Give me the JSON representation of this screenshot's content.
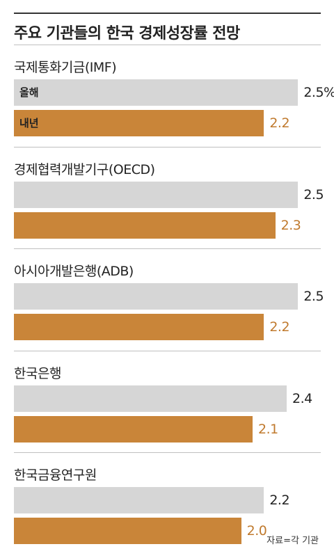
{
  "title": "주요 기관들의 한국 경제성장률 전망",
  "source": "자료=각 기관",
  "colors": {
    "this_year": "#d6d6d6",
    "next_year": "#c98539",
    "next_text": "#c07a2e"
  },
  "chart_data": {
    "type": "bar",
    "orientation": "horizontal",
    "title": "주요 기관들의 한국 경제성장률 전망",
    "series_labels": [
      "올해",
      "내년"
    ],
    "categories": [
      "국제통화기금(IMF)",
      "경제협력개발기구(OECD)",
      "아시아개발은행(ADB)",
      "한국은행",
      "한국금융연구원"
    ],
    "series": [
      {
        "name": "올해",
        "values": [
          2.5,
          2.5,
          2.5,
          2.4,
          2.2
        ],
        "labels": [
          "2.5%",
          "2.5",
          "2.5",
          "2.4",
          "2.2"
        ]
      },
      {
        "name": "내년",
        "values": [
          2.2,
          2.3,
          2.2,
          2.1,
          2.0
        ],
        "labels": [
          "2.2",
          "2.3",
          "2.2",
          "2.1",
          "2.0"
        ]
      }
    ],
    "xlim": [
      0,
      2.7
    ],
    "grid": false,
    "legend": "inline-in-first-group"
  }
}
